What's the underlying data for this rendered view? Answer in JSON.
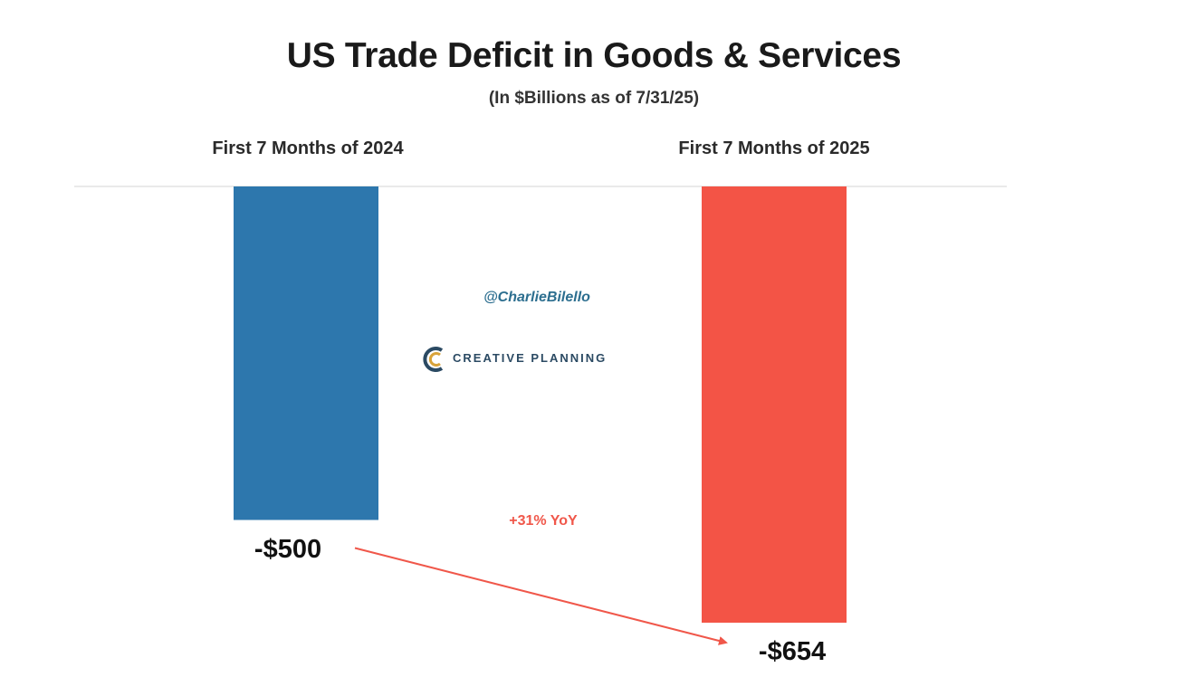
{
  "chart_data": {
    "type": "bar",
    "title": "US Trade Deficit in Goods & Services",
    "subtitle": "(In $Billions as of 7/31/25)",
    "categories": [
      "First 7 Months of 2024",
      "First 7 Months of 2025"
    ],
    "values": [
      -500,
      -654
    ],
    "value_labels": [
      "-$500",
      "-$654"
    ],
    "colors": [
      "#2d77ad",
      "#f35446"
    ],
    "ylim": [
      -654,
      0
    ],
    "grid": false,
    "annotation": {
      "text": "+31% YoY",
      "color": "#f0574a"
    },
    "arrow_color": "#f0574a"
  },
  "watermark": {
    "handle": "@CharlieBilello",
    "logo_text": "CREATIVE PLANNING",
    "logo_icon": "creative-planning-logo-icon",
    "logo_color": "#2b4a63"
  }
}
